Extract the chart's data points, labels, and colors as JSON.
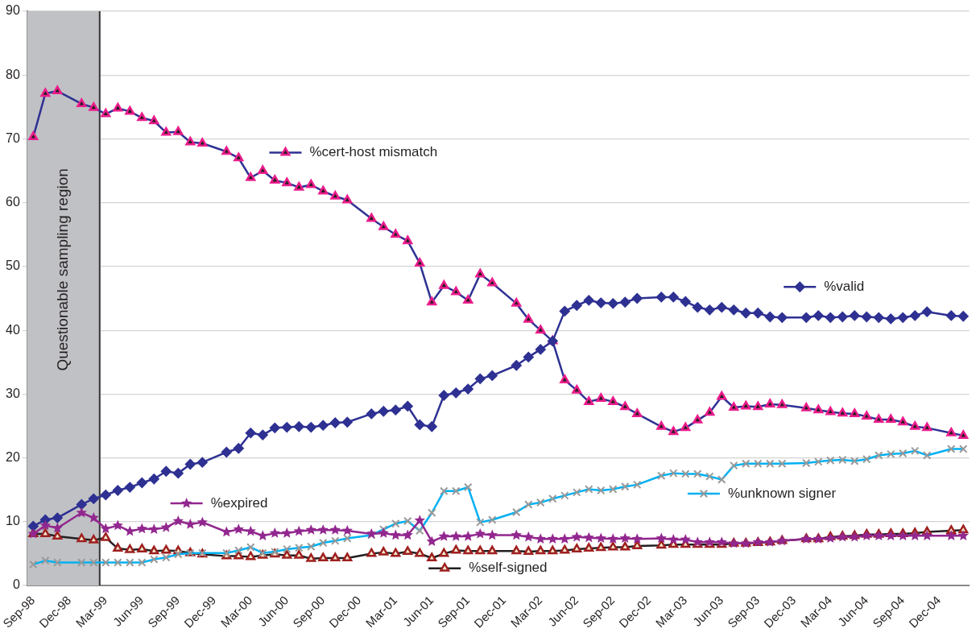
{
  "chart_data": {
    "type": "line",
    "categories": [
      "Sep-98",
      null,
      null,
      "Dec-98",
      null,
      null,
      "Mar-99",
      null,
      null,
      "Jun-99",
      null,
      null,
      "Sep-99",
      null,
      null,
      "Dec-99",
      null,
      null,
      "Mar-00",
      null,
      null,
      "Jun-00",
      null,
      null,
      "Sep-00",
      null,
      null,
      "Dec-00",
      null,
      null,
      "Mar-01",
      null,
      null,
      "Jun-01",
      null,
      null,
      "Sep-01",
      null,
      null,
      "Dec-01",
      null,
      null,
      "Mar-02",
      null,
      null,
      "Jun-02",
      null,
      null,
      "Sep-02",
      null,
      null,
      "Dec-02",
      null,
      null,
      "Mar-03",
      null,
      null,
      "Jun-03",
      null,
      null,
      "Sep-03",
      null,
      null,
      "Dec-03",
      null,
      null,
      "Mar-04",
      null,
      null,
      "Jun-04",
      null,
      null,
      "Sep-04",
      null,
      null,
      "Dec-04",
      null,
      null
    ],
    "series": [
      {
        "name": "%valid",
        "color": "#2e3192",
        "marker": "diamond",
        "values": [
          9.3,
          10.3,
          10.6,
          null,
          12.7,
          13.6,
          14.2,
          14.9,
          15.4,
          16.1,
          16.7,
          17.9,
          17.6,
          19.0,
          19.3,
          null,
          20.9,
          21.5,
          23.9,
          23.6,
          24.7,
          24.8,
          24.9,
          24.8,
          25.1,
          25.5,
          25.6,
          null,
          26.9,
          27.3,
          27.5,
          28.1,
          25.2,
          24.9,
          29.8,
          30.2,
          30.8,
          32.4,
          32.9,
          null,
          34.5,
          35.8,
          37.0,
          38.3,
          43.0,
          43.9,
          44.7,
          44.3,
          44.2,
          44.4,
          45.0,
          null,
          45.2,
          45.2,
          44.5,
          43.6,
          43.2,
          43.6,
          43.2,
          42.7,
          42.7,
          42.1,
          42.0,
          null,
          42.0,
          42.3,
          42.0,
          42.1,
          42.3,
          42.1,
          42.0,
          41.8,
          42.0,
          42.3,
          42.9,
          null,
          42.3,
          42.2
        ]
      },
      {
        "name": "%cert-host mismatch",
        "color": "#2e3192",
        "marker": "triangle",
        "values": [
          70.3,
          77.1,
          77.5,
          null,
          75.5,
          74.9,
          73.9,
          74.8,
          74.3,
          73.3,
          72.8,
          71.0,
          71.1,
          69.5,
          69.3,
          null,
          68.0,
          67.0,
          63.9,
          65.0,
          63.5,
          63.1,
          62.4,
          62.8,
          61.8,
          61.0,
          60.4,
          null,
          57.5,
          56.2,
          55.0,
          54.0,
          50.5,
          44.4,
          47.0,
          46.0,
          44.7,
          48.8,
          47.4,
          null,
          44.2,
          41.7,
          40.0,
          38.3,
          32.2,
          30.6,
          28.8,
          29.3,
          28.8,
          28.0,
          26.9,
          null,
          24.9,
          24.1,
          24.7,
          25.9,
          27.1,
          29.6,
          27.9,
          28.1,
          28.0,
          28.4,
          28.3,
          null,
          27.8,
          27.5,
          27.2,
          27.0,
          26.9,
          26.5,
          26.0,
          26.0,
          25.6,
          24.9,
          24.7,
          null,
          23.9,
          23.5
        ]
      },
      {
        "name": "%expired",
        "color": "#92278f",
        "marker": "star",
        "values": [
          8.1,
          9.4,
          9.0,
          null,
          11.4,
          10.6,
          8.9,
          9.4,
          8.5,
          8.9,
          8.8,
          9.1,
          10.1,
          9.6,
          9.9,
          null,
          8.4,
          8.8,
          8.5,
          7.8,
          8.2,
          8.2,
          8.5,
          8.7,
          8.7,
          8.7,
          8.6,
          null,
          8.1,
          8.2,
          7.9,
          7.9,
          10.2,
          6.9,
          7.7,
          7.7,
          7.7,
          8.1,
          7.9,
          null,
          7.9,
          7.6,
          7.3,
          7.3,
          7.3,
          7.6,
          7.5,
          7.4,
          7.3,
          7.4,
          7.3,
          null,
          7.4,
          7.2,
          7.2,
          6.8,
          6.8,
          6.8,
          6.6,
          6.6,
          6.8,
          6.8,
          7.0,
          null,
          7.3,
          7.3,
          7.4,
          7.6,
          7.6,
          7.8,
          7.8,
          7.8,
          7.8,
          7.8,
          7.8,
          null,
          7.8,
          7.8
        ]
      },
      {
        "name": "%unknown signer",
        "color": "#00b0f0",
        "marker": "cross",
        "values": [
          3.3,
          3.9,
          3.6,
          null,
          3.6,
          3.6,
          3.6,
          3.6,
          3.6,
          3.6,
          4.1,
          4.4,
          4.9,
          5.1,
          5.1,
          null,
          5.1,
          5.5,
          6.0,
          5.1,
          5.3,
          5.7,
          5.9,
          6.1,
          6.7,
          7.0,
          7.4,
          null,
          7.9,
          8.8,
          9.7,
          10.1,
          8.6,
          11.4,
          14.8,
          14.8,
          15.4,
          9.9,
          10.3,
          null,
          11.5,
          12.7,
          13.0,
          13.6,
          14.1,
          14.6,
          15.1,
          14.9,
          15.1,
          15.5,
          15.8,
          null,
          17.2,
          17.6,
          17.5,
          17.5,
          17.1,
          16.6,
          18.8,
          19.1,
          19.1,
          19.1,
          19.1,
          null,
          19.2,
          19.4,
          19.6,
          19.7,
          19.5,
          19.8,
          20.4,
          20.6,
          20.7,
          21.1,
          20.4,
          null,
          21.4,
          21.4
        ]
      },
      {
        "name": "%self-signed",
        "color": "#231f20",
        "marker": "triangle",
        "values": [
          8.1,
          8.1,
          7.7,
          null,
          7.3,
          7.1,
          7.5,
          5.8,
          5.6,
          5.7,
          5.4,
          5.5,
          5.4,
          5.1,
          4.9,
          null,
          4.6,
          4.6,
          4.5,
          4.7,
          4.9,
          4.7,
          4.7,
          4.2,
          4.3,
          4.3,
          4.3,
          null,
          5.0,
          5.2,
          5.0,
          5.3,
          5.0,
          4.3,
          5.0,
          5.5,
          5.4,
          5.4,
          5.4,
          null,
          5.4,
          5.3,
          5.4,
          5.4,
          5.5,
          5.7,
          5.8,
          5.9,
          6.0,
          6.0,
          6.2,
          null,
          6.3,
          6.4,
          6.4,
          6.4,
          6.4,
          6.4,
          6.6,
          6.6,
          6.7,
          6.8,
          7.0,
          null,
          7.3,
          7.3,
          7.6,
          7.7,
          7.8,
          8.0,
          8.0,
          8.1,
          8.1,
          8.2,
          8.4,
          null,
          8.6,
          8.7
        ]
      }
    ],
    "ylim": [
      0,
      90
    ],
    "yticks": [
      0,
      10,
      20,
      30,
      40,
      50,
      60,
      70,
      80,
      90
    ],
    "grid": "y",
    "legend": "right",
    "bands": [
      {
        "axis": "x",
        "from": "Sep-98",
        "to": "Mar-99",
        "label": "Questionable sampling region",
        "color": "#c0c1c5"
      }
    ]
  }
}
